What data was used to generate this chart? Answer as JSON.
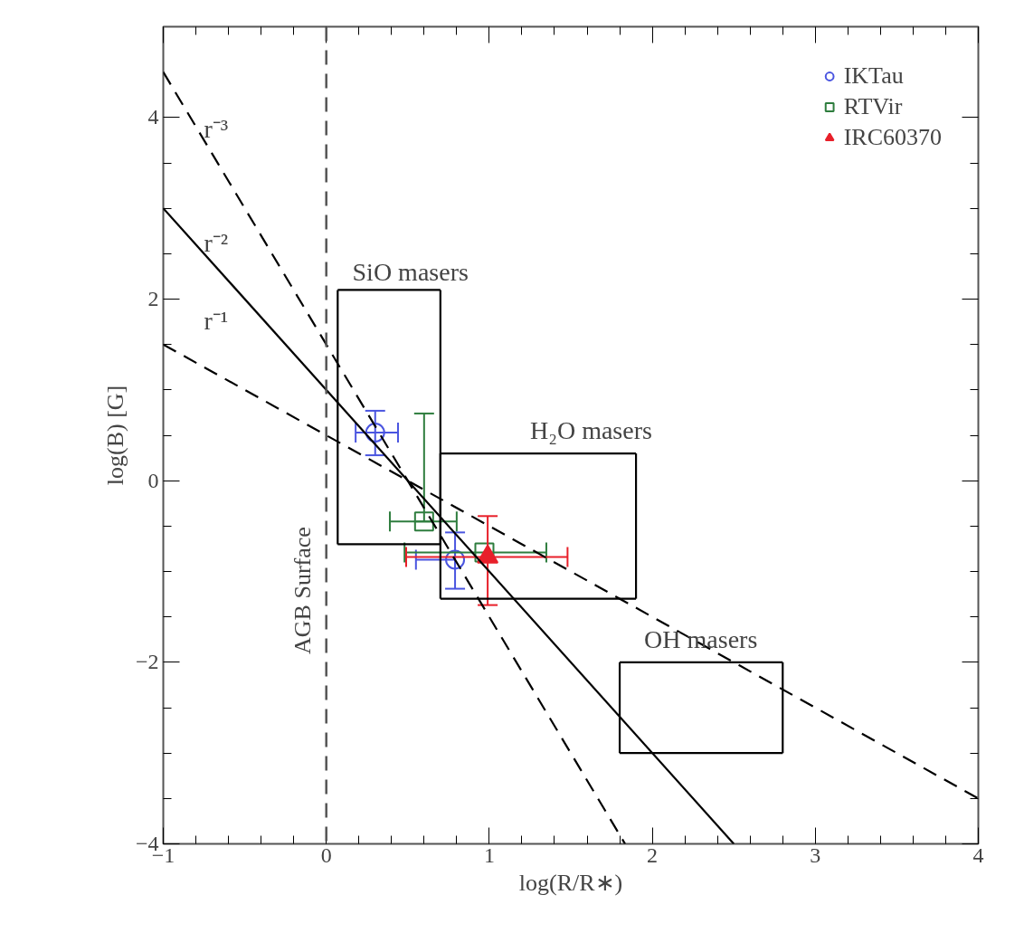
{
  "chart_data": {
    "type": "scatter",
    "xlabel": "log(R/R∗)",
    "ylabel": "log(B) [G]",
    "xlim": [
      -1,
      4
    ],
    "ylim": [
      -4,
      5
    ],
    "xticks": [
      -1,
      0,
      1,
      2,
      3,
      4
    ],
    "yticks": [
      -4,
      -2,
      0,
      2,
      4
    ],
    "grid": false,
    "legend": "top right",
    "series": [
      {
        "name": "IKTau",
        "color": "#4a55e0",
        "marker": "circle",
        "x": [
          0.3,
          0.79
        ],
        "values": [
          0.53,
          -0.87
        ],
        "xerrors": [
          [
            0.18,
            0.44
          ],
          [
            0.55,
            0.79
          ]
        ],
        "errors": [
          [
            0.28,
            0.77
          ],
          [
            -1.19,
            -0.57
          ]
        ]
      },
      {
        "name": "RTVir",
        "color": "#2e7d3e",
        "marker": "square",
        "x": [
          0.6,
          0.97
        ],
        "values": [
          -0.45,
          -0.79
        ],
        "xerrors": [
          [
            0.39,
            0.8
          ],
          [
            0.48,
            1.35
          ]
        ],
        "errors": [
          [
            -0.45,
            0.74
          ],
          null
        ]
      },
      {
        "name": "IRC60370",
        "color": "#e8202a",
        "marker": "triangle",
        "x": [
          0.99
        ],
        "values": [
          -0.84
        ],
        "xerrors": [
          [
            0.49,
            1.48
          ]
        ],
        "errors": [
          [
            -1.37,
            -0.39
          ]
        ]
      },
      {
        "type": "line",
        "color": "#000000",
        "line_style": "dashed",
        "x": [
          -1,
          1.833
        ],
        "values": [
          4.5,
          -4
        ]
      },
      {
        "type": "line",
        "color": "#000000",
        "line_style": "solid",
        "x": [
          -1,
          2.5
        ],
        "values": [
          3,
          -4
        ]
      },
      {
        "type": "line",
        "color": "#000000",
        "line_style": "dashed",
        "x": [
          -1,
          4
        ],
        "values": [
          1.5,
          -3.5
        ]
      },
      {
        "type": "line",
        "color": "#000000",
        "line_style": "solid",
        "x": [
          0.07,
          0.7
        ],
        "values": [
          2.1,
          2.1
        ]
      },
      {
        "type": "line",
        "color": "#000000",
        "line_style": "solid",
        "x": [
          0.07,
          0.7
        ],
        "values": [
          -0.7,
          -0.7
        ]
      },
      {
        "type": "line",
        "color": "#000000",
        "line_style": "solid",
        "x": [
          0.07,
          0.07
        ],
        "values": [
          -0.7,
          2.1
        ]
      },
      {
        "type": "line",
        "color": "#000000",
        "line_style": "solid",
        "x": [
          0.7,
          0.7
        ],
        "values": [
          -0.7,
          2.1
        ]
      },
      {
        "type": "line",
        "color": "#000000",
        "line_style": "solid",
        "x": [
          0.7,
          1.9
        ],
        "values": [
          0.3,
          0.3
        ]
      },
      {
        "type": "line",
        "color": "#000000",
        "line_style": "solid",
        "x": [
          0.7,
          1.9
        ],
        "values": [
          -1.3,
          -1.3
        ]
      },
      {
        "type": "line",
        "color": "#000000",
        "line_style": "solid",
        "x": [
          0.7,
          0.7
        ],
        "values": [
          -1.3,
          0.3
        ]
      },
      {
        "type": "line",
        "color": "#000000",
        "line_style": "solid",
        "x": [
          1.9,
          1.9
        ],
        "values": [
          -1.3,
          0.3
        ]
      },
      {
        "type": "line",
        "color": "#000000",
        "line_style": "solid",
        "x": [
          1.8,
          2.8
        ],
        "values": [
          -2,
          -2
        ]
      },
      {
        "type": "line",
        "color": "#000000",
        "line_style": "solid",
        "x": [
          1.8,
          2.8
        ],
        "values": [
          -3,
          -3
        ]
      },
      {
        "type": "line",
        "color": "#000000",
        "line_style": "solid",
        "x": [
          1.8,
          1.8
        ],
        "values": [
          -3,
          -2
        ]
      },
      {
        "type": "line",
        "color": "#000000",
        "line_style": "solid",
        "x": [
          2.8,
          2.8
        ],
        "values": [
          -3,
          -2
        ]
      }
    ],
    "ref_lines": [
      {
        "axis": "x",
        "value": 0,
        "label": "AGB Surface",
        "line_style": "dashed"
      }
    ],
    "annotations": [
      "r⁻³",
      "r⁻²",
      "r⁻¹",
      "SiO masers",
      "H₂O masers",
      "OH masers"
    ]
  }
}
